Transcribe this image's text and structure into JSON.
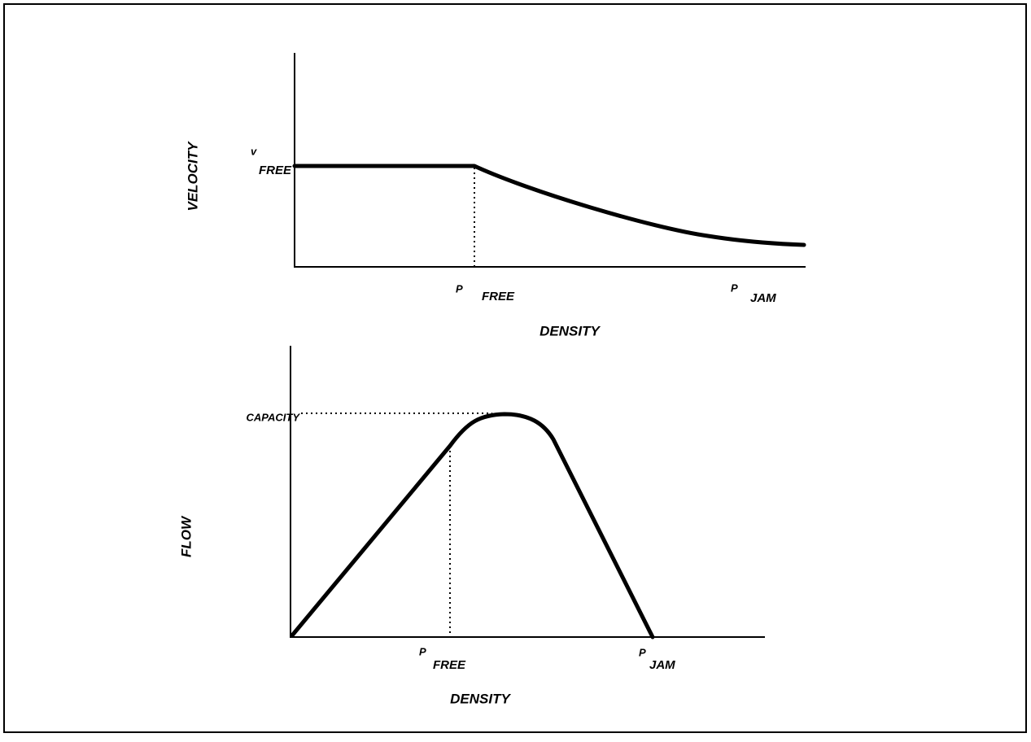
{
  "top_panel": {
    "y_axis_label": "VELOCITY",
    "x_axis_label": "DENSITY",
    "v_free": {
      "symbol": "v",
      "subscript": "FREE"
    },
    "p_free": {
      "symbol": "P",
      "subscript": "FREE"
    },
    "p_jam": {
      "symbol": "P",
      "subscript": "JAM"
    }
  },
  "bottom_panel": {
    "y_axis_label": "FLOW",
    "x_axis_label": "DENSITY",
    "capacity": "CAPACITY",
    "p_free": {
      "symbol": "P",
      "subscript": "FREE"
    },
    "p_jam": {
      "symbol": "P",
      "subscript": "JAM"
    }
  }
}
